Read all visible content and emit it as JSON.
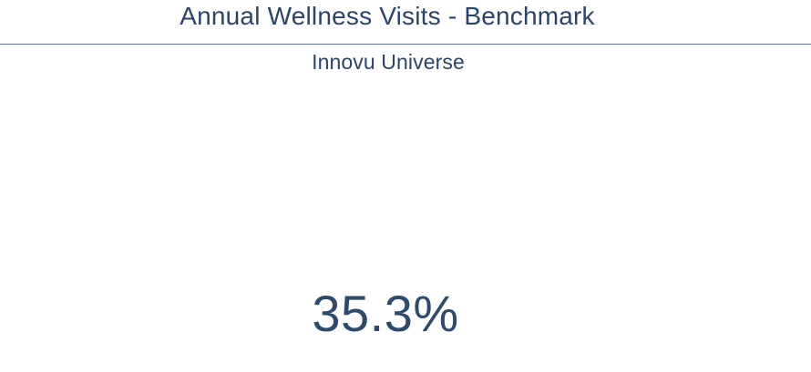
{
  "header": {
    "title": "Annual Wellness Visits - Benchmark",
    "subtitle": "Innovu Universe"
  },
  "metric": {
    "value": "35.3%"
  },
  "colors": {
    "text": "#2b4468",
    "divider": "#5f7390",
    "background": "#ffffff"
  }
}
